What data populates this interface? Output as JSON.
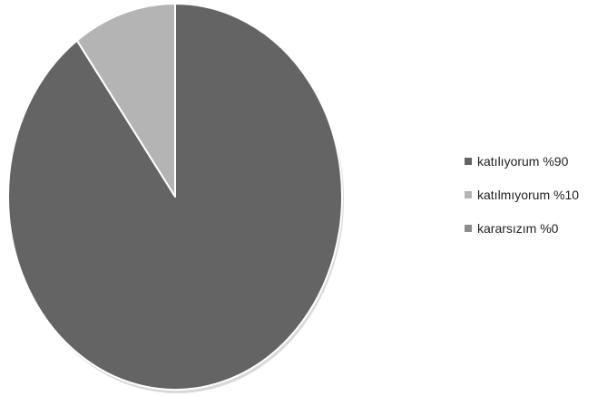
{
  "chart_data": {
    "type": "pie",
    "title": "",
    "start_angle_deg": 0,
    "direction": "clockwise",
    "legend_position": "right",
    "slices": [
      {
        "label": "katılıyorum %90",
        "value": 90,
        "color": "#646464"
      },
      {
        "label": "katılmıyorum %10",
        "value": 10,
        "color": "#b4b4b4"
      },
      {
        "label": "kararsızım %0",
        "value": 0,
        "color": "#8c8c8c"
      }
    ]
  }
}
